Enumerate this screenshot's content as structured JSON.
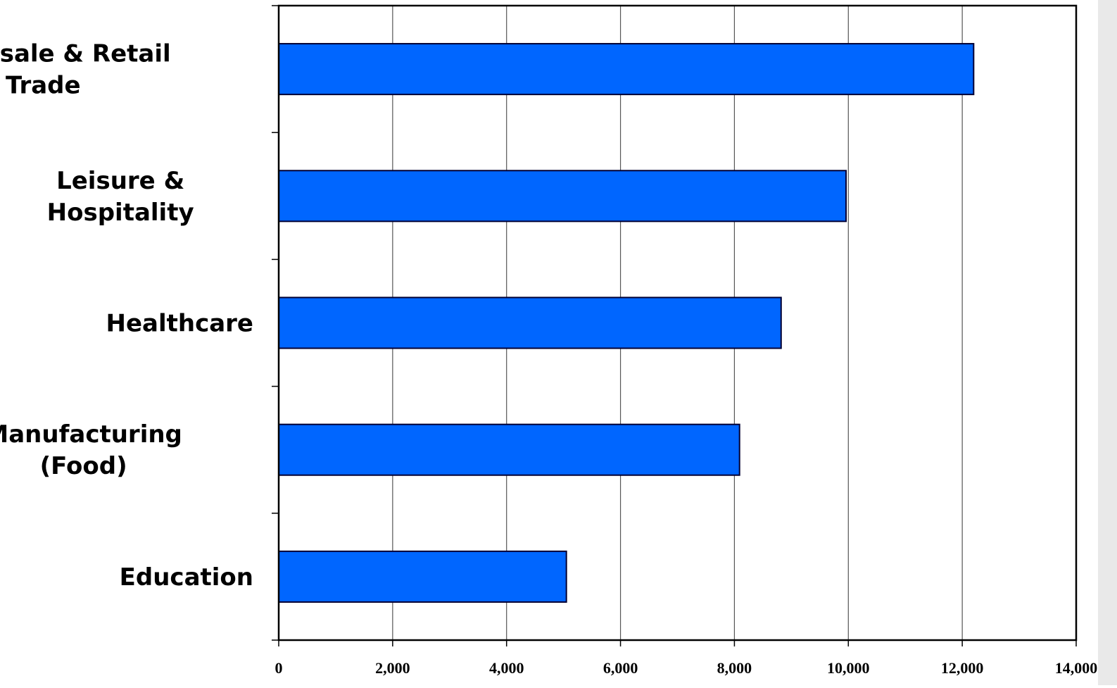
{
  "chart_data": {
    "type": "bar",
    "orientation": "horizontal",
    "title": "",
    "xlabel": "",
    "ylabel": "",
    "categories": [
      [
        "Wholesale & Retail",
        "Trade"
      ],
      [
        "Leisure &",
        "Hospitality"
      ],
      [
        "Healthcare"
      ],
      [
        "Manufacturing",
        "(Food)"
      ],
      [
        "Education"
      ]
    ],
    "values": [
      12200,
      9960,
      8820,
      8090,
      5050
    ],
    "xlim": [
      0,
      14000
    ],
    "xticks": [
      0,
      2000,
      4000,
      6000,
      8000,
      10000,
      12000,
      14000
    ],
    "xtick_labels": [
      "0",
      "2,000",
      "4,000",
      "6,000",
      "8,000",
      "10,000",
      "12,000",
      "14,000"
    ],
    "grid": "vertical",
    "legend": "none",
    "bar_color": "#0066ff",
    "bar_outline_color": "#000033"
  }
}
